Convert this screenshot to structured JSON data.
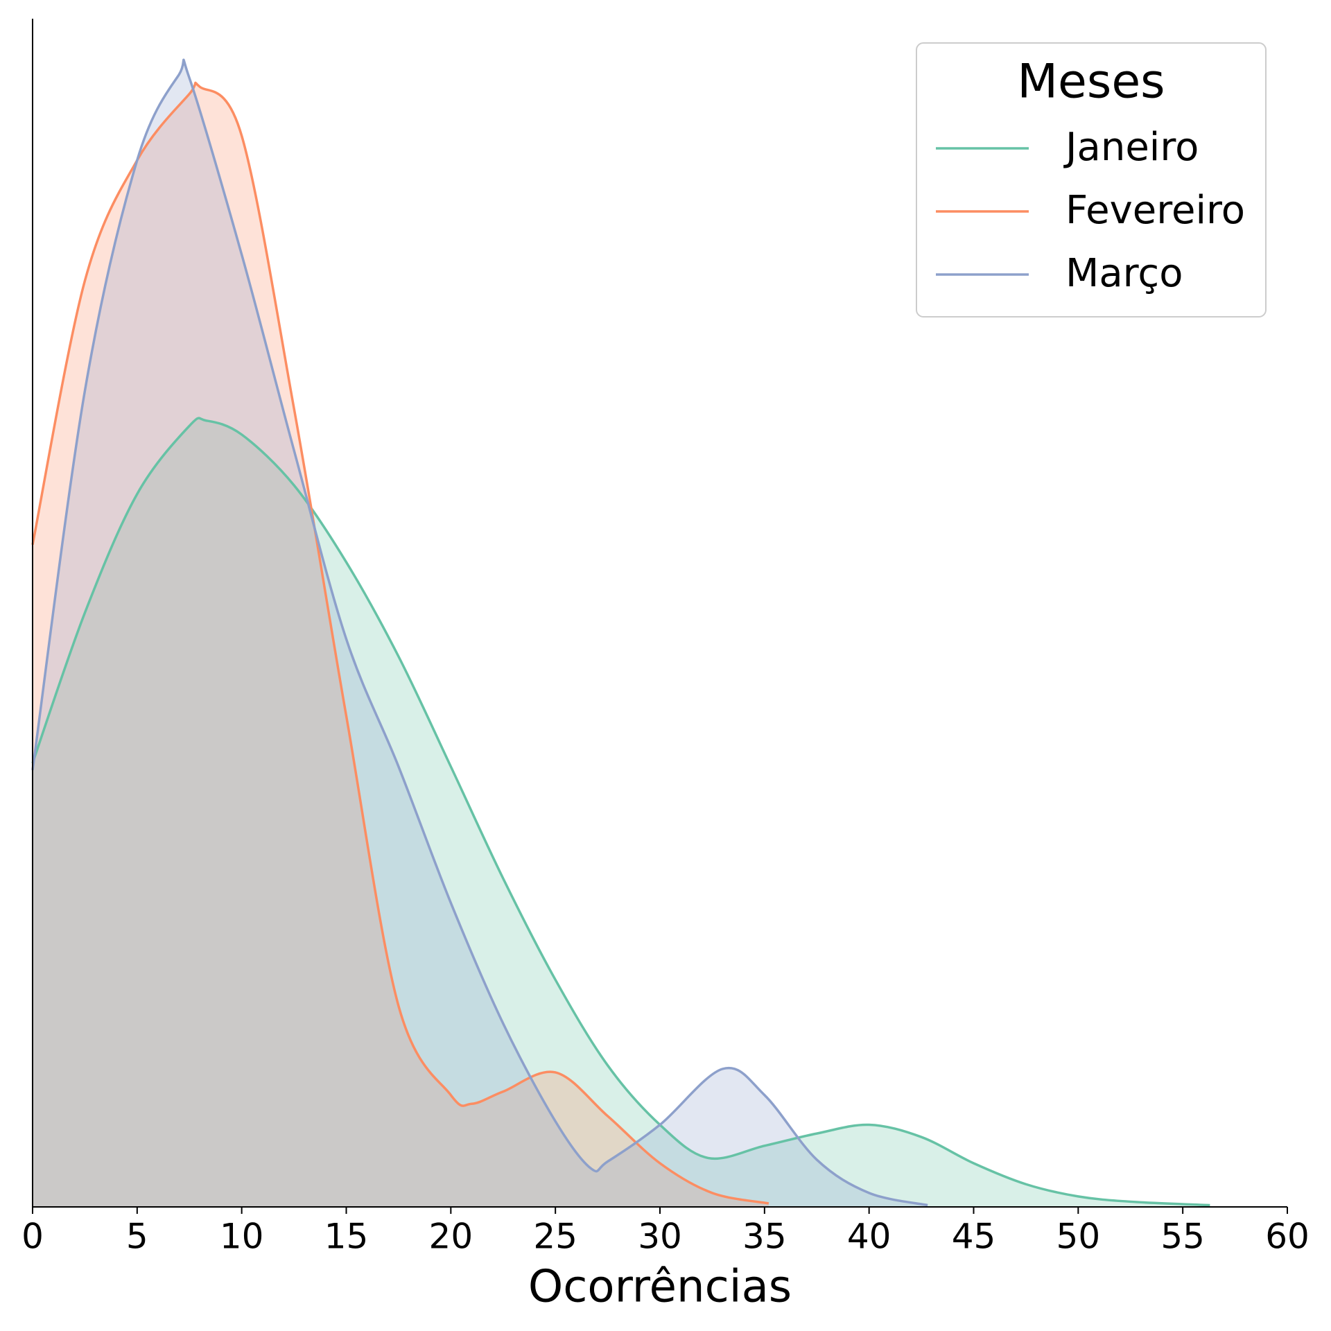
{
  "chart_data": {
    "type": "kde",
    "xlabel": "Ocorrências",
    "legend_title": "Meses",
    "legend_position": "upper right",
    "xlim": [
      0,
      60
    ],
    "ylim": [
      0,
      0.068
    ],
    "xticks": [
      0,
      5,
      10,
      15,
      20,
      25,
      30,
      35,
      40,
      45,
      50,
      55,
      60
    ],
    "fill_alpha": 0.25,
    "series": [
      {
        "name": "Janeiro",
        "color": "#66c2a5",
        "x": [
          0,
          2.5,
          5,
          7.5,
          8.3,
          10,
          12.5,
          15,
          17.5,
          20,
          22.5,
          25,
          27.5,
          30,
          32.3,
          35,
          37.5,
          40,
          42.5,
          45,
          47.5,
          50,
          52.5,
          56.3
        ],
        "values": [
          0.0254,
          0.034,
          0.0408,
          0.0447,
          0.045,
          0.0442,
          0.0413,
          0.0369,
          0.0315,
          0.0252,
          0.0188,
          0.013,
          0.0081,
          0.0047,
          0.0028,
          0.0035,
          0.0042,
          0.0047,
          0.004,
          0.0025,
          0.0013,
          0.0006,
          0.0003,
          0.0001
        ]
      },
      {
        "name": "Fevereiro",
        "color": "#fc8d62",
        "x": [
          0,
          2.5,
          5,
          7.5,
          8,
          10,
          12.5,
          15,
          17.5,
          20,
          21,
          22.5,
          25,
          27.5,
          30,
          32.5,
          35.2
        ],
        "values": [
          0.0379,
          0.053,
          0.0599,
          0.0637,
          0.0641,
          0.0613,
          0.0457,
          0.0281,
          0.0115,
          0.0064,
          0.0059,
          0.0066,
          0.0077,
          0.0052,
          0.0025,
          0.0008,
          0.0002
        ]
      },
      {
        "name": "Março",
        "color": "#8da0cb",
        "x": [
          0,
          2.5,
          5,
          7,
          7.5,
          10,
          12.5,
          15,
          17.5,
          20,
          22.5,
          25,
          26.7,
          27.5,
          30,
          33,
          35,
          37.5,
          40,
          42.8
        ],
        "values": [
          0.025,
          0.0467,
          0.0599,
          0.0648,
          0.0646,
          0.0545,
          0.0433,
          0.0325,
          0.0252,
          0.0174,
          0.0105,
          0.0049,
          0.0022,
          0.0026,
          0.0047,
          0.0079,
          0.0064,
          0.0027,
          0.0008,
          0.0001
        ]
      }
    ]
  }
}
